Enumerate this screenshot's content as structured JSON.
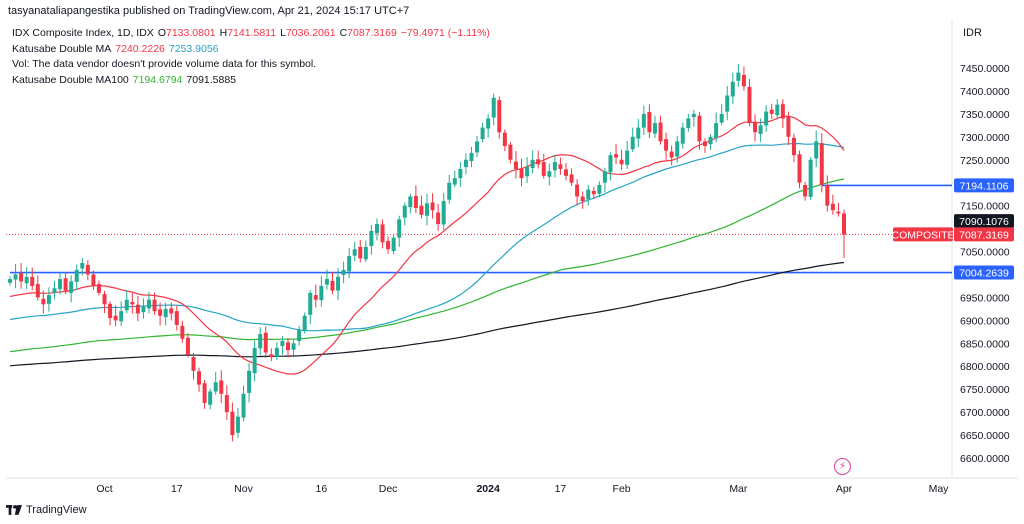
{
  "publisher": "tasyanataliapangestika published on TradingView.com, Apr 21, 2024 15:17 UTC+7",
  "legend": {
    "symbol": "IDX Composite Index, 1D, IDX",
    "open_label": "O",
    "open": "7133.0801",
    "high_label": "H",
    "high": "7141.5811",
    "low_label": "L",
    "low": "7036.2061",
    "close_label": "C",
    "close": "7087.3169",
    "change": "−79.4971 (−1.11%)",
    "ma1_name": "Katusabe Double MA",
    "ma1_v1": "7240.2226",
    "ma1_v2": "7253.9056",
    "vol_text": "Vol: The data vendor doesn't provide volume data for this symbol.",
    "ma2_name": "Katusabe Double MA100",
    "ma2_v1": "7194.6794",
    "ma2_v2": "7091.5885"
  },
  "currency": "IDR",
  "footer": {
    "brand": "TradingView"
  },
  "icons": {
    "alert": "lightning-bolt-icon",
    "logo": "tradingview-logo-icon"
  },
  "colors": {
    "up": "#22ab94",
    "down": "#f23645",
    "ma20": "#f23645",
    "ma50": "#26a4c7",
    "ma100": "#31b531",
    "ma200": "#131722",
    "hline": "#2962ff"
  },
  "chart_data": {
    "type": "candlestick",
    "y_axis": {
      "min": 6580,
      "max": 7500,
      "ticks": [
        "6600.0000",
        "6650.0000",
        "6700.0000",
        "6750.0000",
        "6800.0000",
        "6850.0000",
        "6900.0000",
        "6950.0000",
        "7050.0000",
        "7100.0000",
        "7150.0000",
        "7200.0000",
        "7250.0000",
        "7300.0000",
        "7350.0000",
        "7400.0000",
        "7450.0000"
      ],
      "tick_values": [
        6600,
        6650,
        6700,
        6750,
        6800,
        6850,
        6900,
        6950,
        7050,
        7100,
        7150,
        7200,
        7250,
        7300,
        7350,
        7400,
        7450
      ]
    },
    "x_axis": {
      "labels": [
        "Oct",
        "17",
        "Nov",
        "16",
        "Dec",
        "2024",
        "17",
        "Feb",
        "Mar",
        "Apr",
        "May"
      ],
      "label_index": [
        17,
        30,
        42,
        56,
        68,
        86,
        99,
        110,
        131,
        150,
        167
      ]
    },
    "price_labels": [
      {
        "text": "7194.1106",
        "value": 7194.1106,
        "style": "hline"
      },
      {
        "text": "7090.1076",
        "value": 7090.1076,
        "style": "ma"
      },
      {
        "text": "COMPOSITE",
        "value": 7087.3169,
        "style": "last-name"
      },
      {
        "text": "7087.3169",
        "value": 7087.3169,
        "style": "last"
      },
      {
        "text": "7004.2639",
        "value": 7004.2639,
        "style": "hline"
      }
    ],
    "horizontal_lines": [
      {
        "value": 7004.2639,
        "from_index": 0
      },
      {
        "value": 7194.1106,
        "from_index": 146
      }
    ],
    "last_price": 7087.3169,
    "closes": [
      6990,
      7000,
      6985,
      6995,
      6975,
      6950,
      6935,
      6955,
      6970,
      6990,
      6965,
      6985,
      7010,
      7025,
      7000,
      6975,
      6960,
      6935,
      6905,
      6900,
      6920,
      6945,
      6935,
      6915,
      6930,
      6945,
      6920,
      6910,
      6925,
      6915,
      6890,
      6860,
      6825,
      6790,
      6760,
      6720,
      6745,
      6765,
      6740,
      6700,
      6650,
      6690,
      6740,
      6790,
      6840,
      6870,
      6830,
      6820,
      6840,
      6855,
      6835,
      6850,
      6880,
      6910,
      6960,
      6945,
      6975,
      6990,
      6965,
      6995,
      7010,
      7040,
      7055,
      7035,
      7060,
      7095,
      7110,
      7070,
      7055,
      7080,
      7120,
      7150,
      7170,
      7145,
      7130,
      7155,
      7140,
      7110,
      7160,
      7200,
      7210,
      7230,
      7250,
      7265,
      7290,
      7320,
      7340,
      7385,
      7310,
      7280,
      7250,
      7230,
      7210,
      7235,
      7250,
      7240,
      7215,
      7225,
      7245,
      7230,
      7215,
      7200,
      7170,
      7160,
      7185,
      7175,
      7195,
      7225,
      7260,
      7255,
      7240,
      7270,
      7300,
      7320,
      7350,
      7310,
      7330,
      7290,
      7270,
      7255,
      7290,
      7320,
      7340,
      7350,
      7290,
      7280,
      7300,
      7330,
      7350,
      7390,
      7420,
      7440,
      7410,
      7330,
      7310,
      7325,
      7355,
      7350,
      7370,
      7340,
      7300,
      7260,
      7200,
      7170,
      7250,
      7290,
      7195,
      7150,
      7140,
      7133,
      7087
    ],
    "series": [
      {
        "name": "Katusabe Double MA",
        "values": [
          "7240.2226",
          "7253.9056"
        ]
      },
      {
        "name": "Katusabe Double MA100",
        "values": [
          "7194.6794",
          "7091.5885"
        ]
      }
    ]
  }
}
